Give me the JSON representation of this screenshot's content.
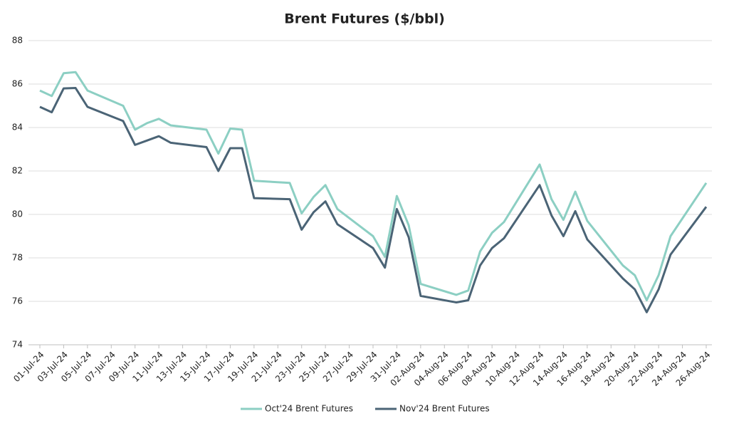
{
  "chart_data": {
    "type": "line",
    "title": "Brent Futures ($/bbl)",
    "x": [
      "01-Jul-24",
      "02-Jul-24",
      "03-Jul-24",
      "04-Jul-24",
      "05-Jul-24",
      "08-Jul-24",
      "09-Jul-24",
      "10-Jul-24",
      "11-Jul-24",
      "12-Jul-24",
      "15-Jul-24",
      "16-Jul-24",
      "17-Jul-24",
      "18-Jul-24",
      "19-Jul-24",
      "22-Jul-24",
      "23-Jul-24",
      "24-Jul-24",
      "25-Jul-24",
      "26-Jul-24",
      "29-Jul-24",
      "30-Jul-24",
      "31-Jul-24",
      "01-Aug-24",
      "02-Aug-24",
      "05-Aug-24",
      "06-Aug-24",
      "07-Aug-24",
      "08-Aug-24",
      "09-Aug-24",
      "12-Aug-24",
      "13-Aug-24",
      "14-Aug-24",
      "15-Aug-24",
      "16-Aug-24",
      "19-Aug-24",
      "20-Aug-24",
      "21-Aug-24",
      "22-Aug-24",
      "23-Aug-24",
      "26-Aug-24"
    ],
    "series": [
      {
        "name": "Oct'24 Brent Futures",
        "color": "#8ccfc3",
        "values": [
          85.7,
          85.45,
          86.5,
          86.55,
          85.7,
          85.0,
          83.9,
          84.2,
          84.4,
          84.1,
          83.9,
          82.8,
          83.95,
          83.9,
          81.55,
          81.45,
          80.05,
          80.8,
          81.35,
          80.25,
          79.0,
          78.05,
          80.85,
          79.5,
          76.8,
          76.3,
          76.5,
          78.3,
          79.15,
          79.65,
          82.3,
          80.7,
          79.75,
          81.05,
          79.7,
          77.65,
          77.2,
          76.05,
          77.2,
          79.0,
          81.45
        ]
      },
      {
        "name": "Nov'24 Brent Futures",
        "color": "#4b6476",
        "values": [
          84.95,
          84.7,
          85.8,
          85.82,
          84.95,
          84.3,
          83.2,
          83.4,
          83.6,
          83.3,
          83.1,
          82.0,
          83.05,
          83.05,
          80.75,
          80.7,
          79.3,
          80.1,
          80.6,
          79.55,
          78.45,
          77.55,
          80.25,
          78.95,
          76.25,
          75.95,
          76.05,
          77.65,
          78.45,
          78.9,
          81.35,
          79.95,
          79.0,
          80.15,
          78.85,
          77.05,
          76.55,
          75.5,
          76.55,
          78.15,
          80.35
        ]
      }
    ],
    "xlim": [
      "01-Jul-24",
      "26-Aug-24"
    ],
    "xticks": [
      "01-Jul-24",
      "03-Jul-24",
      "05-Jul-24",
      "07-Jul-24",
      "09-Jul-24",
      "11-Jul-24",
      "13-Jul-24",
      "15-Jul-24",
      "17-Jul-24",
      "19-Jul-24",
      "21-Jul-24",
      "23-Jul-24",
      "25-Jul-24",
      "27-Jul-24",
      "29-Jul-24",
      "31-Jul-24",
      "02-Aug-24",
      "04-Aug-24",
      "06-Aug-24",
      "08-Aug-24",
      "10-Aug-24",
      "12-Aug-24",
      "14-Aug-24",
      "16-Aug-24",
      "18-Aug-24",
      "20-Aug-24",
      "22-Aug-24",
      "24-Aug-24",
      "26-Aug-24"
    ],
    "ylim": [
      74,
      88
    ],
    "yticks": [
      74,
      76,
      78,
      80,
      82,
      84,
      86,
      88
    ],
    "grid": true,
    "legend": "bottom"
  }
}
